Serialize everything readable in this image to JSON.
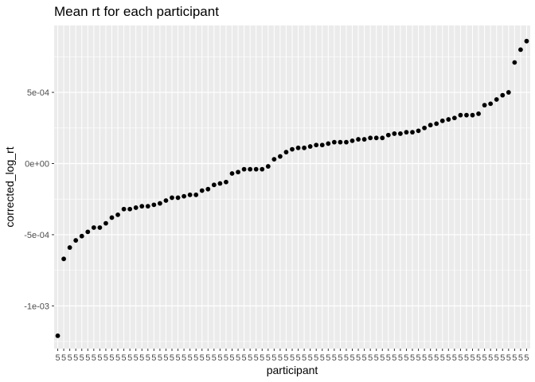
{
  "chart_data": {
    "type": "scatter",
    "title": "Mean rt for each participant",
    "xlabel": "participant",
    "ylabel": "corrected_log_rt",
    "ylim": [
      -0.0013,
      0.00097
    ],
    "y_ticks": [
      {
        "value": 0.0005,
        "label": "5e-04"
      },
      {
        "value": 0.0,
        "label": "0e+00"
      },
      {
        "value": -0.0005,
        "label": "-5e-04"
      },
      {
        "value": -0.001,
        "label": "-1e-03"
      }
    ],
    "x_tick_label": "5",
    "grid": true,
    "legend": "none",
    "colors": {
      "panel": "#ebebeb",
      "grid": "#ffffff",
      "point": "#000000"
    },
    "values": [
      -0.00121,
      -0.00067,
      -0.00059,
      -0.00054,
      -0.00051,
      -0.00048,
      -0.00045,
      -0.00045,
      -0.00042,
      -0.00038,
      -0.00036,
      -0.00032,
      -0.00032,
      -0.00031,
      -0.0003,
      -0.0003,
      -0.00029,
      -0.00028,
      -0.00026,
      -0.00024,
      -0.00024,
      -0.00023,
      -0.00022,
      -0.00022,
      -0.00019,
      -0.00018,
      -0.00015,
      -0.00014,
      -0.00013,
      -7e-05,
      -6e-05,
      -4e-05,
      -4e-05,
      -4e-05,
      -4e-05,
      -2e-05,
      3e-05,
      5e-05,
      8e-05,
      0.0001,
      0.00011,
      0.00011,
      0.00012,
      0.00013,
      0.00013,
      0.00014,
      0.00015,
      0.00015,
      0.00015,
      0.00016,
      0.00017,
      0.00017,
      0.00018,
      0.00018,
      0.00018,
      0.0002,
      0.00021,
      0.00021,
      0.00022,
      0.00022,
      0.00023,
      0.00025,
      0.00027,
      0.00028,
      0.0003,
      0.00031,
      0.00032,
      0.00034,
      0.00034,
      0.00034,
      0.00035,
      0.00041,
      0.00042,
      0.00045,
      0.00048,
      0.0005,
      0.00071,
      0.0008,
      0.00086
    ]
  }
}
